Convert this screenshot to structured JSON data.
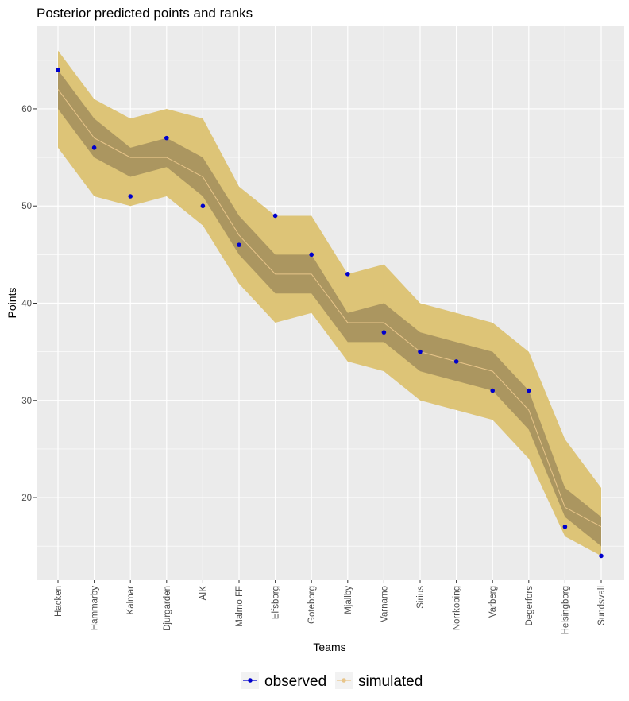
{
  "chart_data": {
    "type": "line",
    "title": "Posterior predicted points and ranks",
    "xlabel": "Teams",
    "ylabel": "Points",
    "ylim": [
      11.5,
      68.5
    ],
    "yticks": [
      20,
      30,
      40,
      50,
      60
    ],
    "grid": true,
    "legend_position": "bottom",
    "categories": [
      "Hacken",
      "Hammarby",
      "Kalmar",
      "Djurgarden",
      "AIK",
      "Malmo FF",
      "Elfsborg",
      "Goteborg",
      "Mjallby",
      "Varnamo",
      "Sirius",
      "Norrkoping",
      "Varberg",
      "Degerfors",
      "Helsingborg",
      "Sundsvall"
    ],
    "series": [
      {
        "name": "observed",
        "color": "#0000cc",
        "values": [
          64,
          56,
          51,
          57,
          50,
          46,
          49,
          45,
          43,
          37,
          35,
          34,
          31,
          31,
          17,
          14
        ]
      },
      {
        "name": "simulated",
        "color": "#e8c58a",
        "values": [
          62,
          57,
          55,
          55,
          53,
          47,
          43,
          43,
          38,
          38,
          35,
          34,
          33,
          29,
          19,
          17
        ]
      }
    ],
    "intervals": [
      {
        "color": "#ddc477",
        "lower": [
          56,
          51,
          50,
          51,
          48,
          42,
          38,
          39,
          34,
          33,
          30,
          29,
          28,
          24,
          16,
          14
        ],
        "upper": [
          66,
          61,
          59,
          60,
          59,
          52,
          49,
          49,
          43,
          44,
          40,
          39,
          38,
          35,
          26,
          21
        ]
      },
      {
        "color": "#ab9660",
        "lower": [
          60,
          55,
          53,
          54,
          51,
          45,
          41,
          41,
          36,
          36,
          33,
          32,
          31,
          27,
          18,
          15
        ],
        "upper": [
          64,
          59,
          56,
          57,
          55,
          49,
          45,
          45,
          39,
          40,
          37,
          36,
          35,
          31,
          21,
          18
        ]
      }
    ]
  },
  "legend": {
    "items": [
      {
        "label": "observed",
        "color": "#0000cc"
      },
      {
        "label": "simulated",
        "color": "#e8c58a"
      }
    ]
  }
}
